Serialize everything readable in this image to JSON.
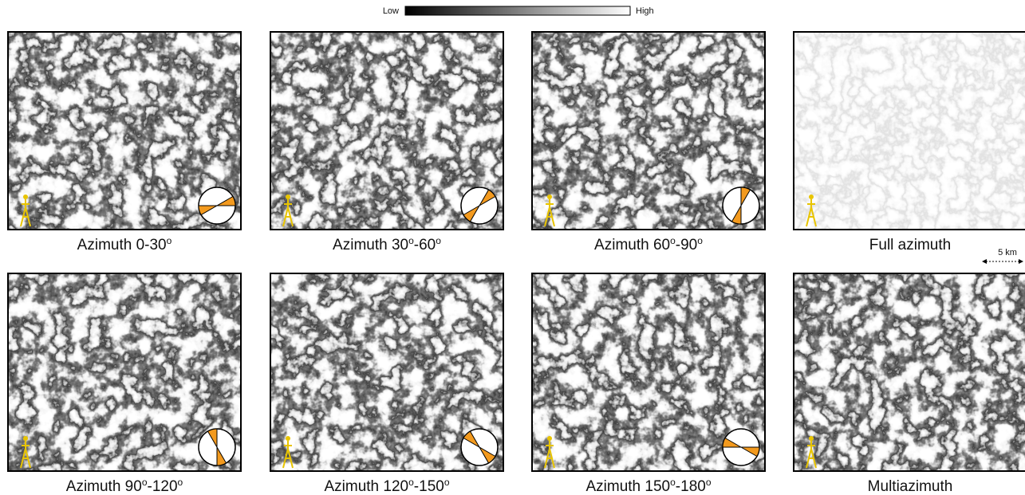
{
  "colorbar": {
    "low": "Low",
    "high": "High"
  },
  "scale_bar": "5 km",
  "panels": [
    {
      "caption": [
        "Azimuth 0-30",
        "o"
      ],
      "azimuth_range": [
        0,
        30
      ]
    },
    {
      "caption": [
        "Azimuth 30",
        "o",
        "-60",
        "o"
      ],
      "azimuth_range": [
        30,
        60
      ]
    },
    {
      "caption": [
        "Azimuth 60",
        "o",
        "-90",
        "o"
      ],
      "azimuth_range": [
        60,
        90
      ]
    },
    {
      "caption": [
        "Full azimuth"
      ]
    },
    {
      "caption": [
        "Azimuth 90",
        "o",
        "-120",
        "o"
      ],
      "azimuth_range": [
        90,
        120
      ]
    },
    {
      "caption": [
        "Azimuth 120",
        "o",
        "-150",
        "o"
      ],
      "azimuth_range": [
        120,
        150
      ]
    },
    {
      "caption": [
        "Azimuth 150",
        "o",
        "-180",
        "o"
      ],
      "azimuth_range": [
        150,
        180
      ]
    },
    {
      "caption": [
        "Multiazimuth"
      ]
    }
  ]
}
